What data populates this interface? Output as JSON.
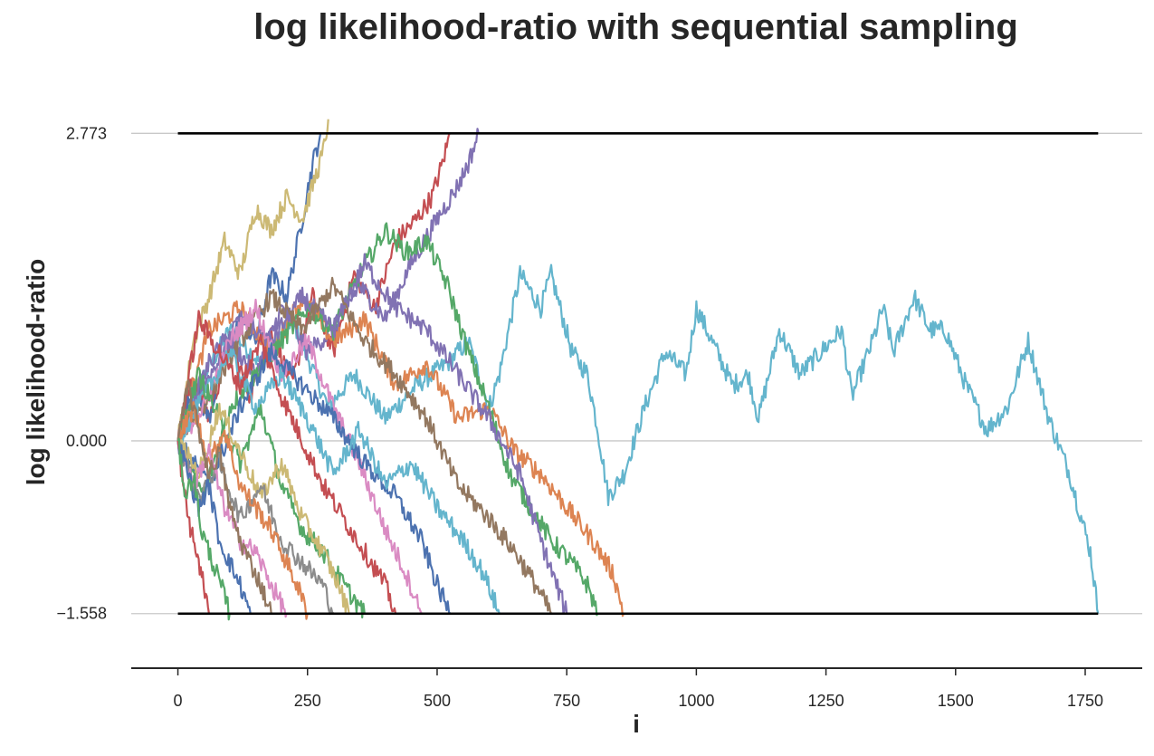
{
  "chart_data": {
    "type": "line",
    "title": "log likelihood-ratio with sequential sampling",
    "xlabel": "i",
    "ylabel": "log likelihood-ratio",
    "xlim": [
      -90,
      1860
    ],
    "ylim": [
      -2.05,
      3.2
    ],
    "x_ticks": [
      0,
      250,
      500,
      750,
      1000,
      1250,
      1500,
      1750
    ],
    "x_tick_labels": [
      "0",
      "250",
      "500",
      "750",
      "1000",
      "1250",
      "1500",
      "1750"
    ],
    "y_ticks": [
      2.773,
      0.0,
      -1.558
    ],
    "y_tick_labels": [
      "2.773",
      "0.000",
      "−1.558"
    ],
    "grid": "horizontal lines at y ticks",
    "thresholds": {
      "upper": 2.773,
      "lower": -1.558,
      "x_range": [
        0,
        1775
      ],
      "color": "#000000"
    },
    "palette": [
      "#4c72b0",
      "#dd8452",
      "#55a868",
      "#c44e52",
      "#8172b3",
      "#937860",
      "#da8bc3",
      "#8c8c8c",
      "#ccb974",
      "#64b5cd"
    ],
    "series": [
      {
        "color": "#64b5cd",
        "end_x": 1775,
        "end_y": -1.558,
        "x": [
          0,
          40,
          100,
          160,
          220,
          290,
          340,
          400,
          460,
          520,
          560,
          600,
          620,
          660,
          700,
          720,
          760,
          790,
          810,
          830,
          860,
          900,
          940,
          980,
          1000,
          1040,
          1070,
          1100,
          1120,
          1160,
          1200,
          1240,
          1280,
          1300,
          1340,
          1360,
          1380,
          1420,
          1450,
          1480,
          1520,
          1560,
          1600,
          1640,
          1680,
          1720,
          1760,
          1775
        ],
        "y": [
          0.0,
          0.5,
          1.0,
          0.7,
          1.1,
          0.3,
          0.6,
          0.2,
          0.5,
          0.7,
          0.9,
          0.3,
          0.6,
          1.5,
          1.2,
          1.5,
          0.8,
          0.6,
          0.1,
          -0.5,
          -0.3,
          0.3,
          0.8,
          0.6,
          1.2,
          0.8,
          0.5,
          0.6,
          0.2,
          1.0,
          0.6,
          0.8,
          1.0,
          0.4,
          0.9,
          1.2,
          0.8,
          1.3,
          1.0,
          1.0,
          0.5,
          0.1,
          0.3,
          0.9,
          0.2,
          -0.3,
          -1.0,
          -1.558
        ]
      },
      {
        "color": "#c44e52",
        "end_x": 525,
        "end_y": 2.773,
        "x": [
          0,
          30,
          60,
          100,
          140,
          180,
          220,
          260,
          300,
          340,
          380,
          420,
          460,
          490,
          510,
          525
        ],
        "y": [
          0.0,
          0.6,
          0.2,
          0.9,
          0.4,
          1.0,
          0.5,
          1.3,
          0.8,
          1.5,
          1.2,
          1.8,
          2.0,
          2.2,
          2.5,
          2.773
        ]
      },
      {
        "color": "#4c72b0",
        "end_x": 275,
        "end_y": 2.773,
        "x": [
          0,
          30,
          60,
          90,
          120,
          150,
          180,
          210,
          240,
          260,
          275
        ],
        "y": [
          0.0,
          0.5,
          0.2,
          0.8,
          1.1,
          0.9,
          1.5,
          1.3,
          2.0,
          2.5,
          2.773
        ]
      },
      {
        "color": "#ccb974",
        "end_x": 290,
        "end_y": 2.9,
        "x": [
          0,
          30,
          60,
          90,
          120,
          150,
          180,
          210,
          240,
          260,
          280,
          290
        ],
        "y": [
          0.0,
          0.9,
          1.3,
          1.8,
          1.5,
          2.1,
          1.9,
          2.2,
          2.0,
          2.3,
          2.6,
          2.9
        ]
      },
      {
        "color": "#8172b3",
        "end_x": 580,
        "end_y": 2.773,
        "x": [
          0,
          50,
          100,
          150,
          200,
          250,
          300,
          350,
          400,
          450,
          500,
          540,
          560,
          580
        ],
        "y": [
          0.0,
          0.5,
          0.9,
          0.6,
          1.2,
          0.8,
          1.0,
          1.4,
          1.1,
          1.6,
          2.0,
          2.3,
          2.5,
          2.773
        ]
      },
      {
        "color": "#dd8452",
        "end_x": 860,
        "end_y": -1.558,
        "x": [
          0,
          60,
          120,
          180,
          240,
          300,
          360,
          420,
          480,
          540,
          600,
          650,
          700,
          750,
          800,
          840,
          860
        ],
        "y": [
          0.0,
          1.0,
          1.2,
          0.8,
          1.3,
          0.9,
          1.1,
          0.5,
          0.7,
          0.2,
          0.3,
          -0.1,
          -0.3,
          -0.6,
          -0.9,
          -1.2,
          -1.558
        ]
      },
      {
        "color": "#55a868",
        "end_x": 810,
        "end_y": -1.558,
        "x": [
          0,
          50,
          100,
          150,
          200,
          250,
          300,
          350,
          400,
          440,
          480,
          520,
          560,
          600,
          640,
          680,
          720,
          760,
          790,
          810
        ],
        "y": [
          0.0,
          -0.5,
          0.3,
          0.6,
          0.9,
          1.2,
          1.0,
          1.5,
          1.9,
          1.7,
          1.8,
          1.4,
          0.8,
          0.3,
          -0.3,
          -0.6,
          -0.9,
          -1.1,
          -1.3,
          -1.558
        ]
      },
      {
        "color": "#8172b3",
        "end_x": 750,
        "end_y": -1.558,
        "x": [
          0,
          60,
          120,
          180,
          240,
          300,
          360,
          420,
          480,
          540,
          600,
          660,
          700,
          730,
          750
        ],
        "y": [
          0.0,
          0.7,
          1.1,
          0.9,
          1.3,
          1.0,
          1.6,
          1.2,
          1.0,
          0.6,
          0.2,
          -0.3,
          -0.9,
          -1.3,
          -1.558
        ]
      },
      {
        "color": "#937860",
        "end_x": 720,
        "end_y": -1.558,
        "x": [
          0,
          60,
          120,
          180,
          240,
          300,
          360,
          420,
          480,
          540,
          600,
          650,
          690,
          720
        ],
        "y": [
          0.0,
          0.4,
          0.9,
          1.3,
          1.0,
          1.4,
          0.9,
          0.6,
          0.2,
          -0.4,
          -0.7,
          -1.0,
          -1.3,
          -1.558
        ]
      },
      {
        "color": "#da8bc3",
        "end_x": 470,
        "end_y": -1.558,
        "x": [
          0,
          50,
          100,
          150,
          200,
          250,
          300,
          350,
          400,
          440,
          470
        ],
        "y": [
          0.0,
          0.3,
          0.9,
          1.2,
          0.6,
          0.9,
          0.3,
          -0.2,
          -0.8,
          -1.2,
          -1.558
        ]
      },
      {
        "color": "#4c72b0",
        "end_x": 525,
        "end_y": -1.558,
        "x": [
          0,
          60,
          120,
          180,
          240,
          300,
          360,
          420,
          470,
          500,
          525
        ],
        "y": [
          0.0,
          -0.4,
          0.3,
          0.8,
          0.5,
          0.2,
          -0.2,
          -0.5,
          -0.9,
          -1.3,
          -1.558
        ]
      },
      {
        "color": "#64b5cd",
        "end_x": 620,
        "end_y": -1.558,
        "x": [
          0,
          50,
          100,
          150,
          200,
          250,
          300,
          350,
          400,
          450,
          500,
          550,
          590,
          620
        ],
        "y": [
          0.0,
          0.4,
          0.8,
          0.3,
          0.6,
          0.2,
          -0.3,
          0.1,
          -0.4,
          -0.2,
          -0.6,
          -0.9,
          -1.2,
          -1.558
        ]
      },
      {
        "color": "#c44e52",
        "end_x": 420,
        "end_y": -1.558,
        "x": [
          0,
          40,
          80,
          120,
          160,
          200,
          240,
          280,
          320,
          360,
          400,
          420
        ],
        "y": [
          0.0,
          1.1,
          0.8,
          0.5,
          0.9,
          0.4,
          0.0,
          -0.4,
          -0.7,
          -1.0,
          -1.3,
          -1.558
        ]
      },
      {
        "color": "#55a868",
        "end_x": 360,
        "end_y": -1.558,
        "x": [
          0,
          40,
          80,
          120,
          160,
          200,
          240,
          280,
          320,
          360
        ],
        "y": [
          0.0,
          0.6,
          0.2,
          -0.2,
          0.3,
          -0.4,
          -0.8,
          -1.0,
          -1.3,
          -1.558
        ]
      },
      {
        "color": "#ccb974",
        "end_x": 330,
        "end_y": -1.558,
        "x": [
          0,
          40,
          80,
          120,
          160,
          200,
          240,
          280,
          310,
          330
        ],
        "y": [
          0.0,
          -0.3,
          0.3,
          -0.1,
          -0.5,
          -0.2,
          -0.7,
          -1.0,
          -1.3,
          -1.558
        ]
      },
      {
        "color": "#8c8c8c",
        "end_x": 300,
        "end_y": -1.558,
        "x": [
          0,
          40,
          80,
          120,
          160,
          200,
          240,
          280,
          300
        ],
        "y": [
          0.0,
          -0.5,
          -0.2,
          -0.7,
          -0.4,
          -0.9,
          -1.1,
          -1.3,
          -1.558
        ]
      },
      {
        "color": "#dd8452",
        "end_x": 250,
        "end_y": -1.558,
        "x": [
          0,
          30,
          60,
          90,
          120,
          150,
          180,
          210,
          230,
          250
        ],
        "y": [
          0.0,
          0.3,
          -0.2,
          0.1,
          -0.4,
          -0.6,
          -0.8,
          -1.1,
          -1.3,
          -1.558
        ]
      },
      {
        "color": "#da8bc3",
        "end_x": 210,
        "end_y": -1.558,
        "x": [
          0,
          30,
          60,
          90,
          120,
          150,
          180,
          210
        ],
        "y": [
          0.0,
          -0.4,
          -0.1,
          -0.6,
          -0.9,
          -1.0,
          -1.3,
          -1.558
        ]
      },
      {
        "color": "#937860",
        "end_x": 180,
        "end_y": -1.558,
        "x": [
          0,
          20,
          40,
          60,
          80,
          100,
          120,
          140,
          160,
          180
        ],
        "y": [
          0.0,
          0.5,
          0.1,
          -0.3,
          -0.1,
          -0.6,
          -0.9,
          -1.1,
          -1.3,
          -1.558
        ]
      },
      {
        "color": "#4c72b0",
        "end_x": 140,
        "end_y": -1.558,
        "x": [
          0,
          20,
          40,
          60,
          80,
          100,
          120,
          140
        ],
        "y": [
          0.0,
          -0.3,
          -0.6,
          -0.4,
          -0.9,
          -1.1,
          -1.3,
          -1.558
        ]
      },
      {
        "color": "#c44e52",
        "end_x": 60,
        "end_y": -1.558,
        "x": [
          0,
          10,
          20,
          30,
          40,
          50,
          60
        ],
        "y": [
          0.0,
          -0.4,
          -0.7,
          -0.9,
          -1.1,
          -1.3,
          -1.558
        ]
      },
      {
        "color": "#55a868",
        "end_x": 100,
        "end_y": -1.558,
        "x": [
          0,
          15,
          30,
          45,
          60,
          75,
          90,
          100
        ],
        "y": [
          0.0,
          -0.5,
          -0.3,
          -0.8,
          -1.0,
          -1.2,
          -1.4,
          -1.558
        ]
      }
    ]
  }
}
